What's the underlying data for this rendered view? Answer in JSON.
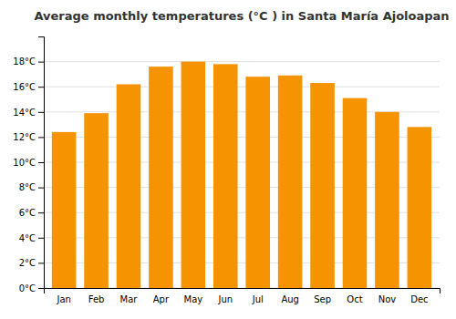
{
  "chart_data": {
    "type": "bar",
    "title": "Average monthly temperatures (°C ) in Santa María Ajoloapan",
    "categories": [
      "Jan",
      "Feb",
      "Mar",
      "Apr",
      "May",
      "Jun",
      "Jul",
      "Aug",
      "Sep",
      "Oct",
      "Nov",
      "Dec"
    ],
    "values": [
      12.4,
      13.9,
      16.2,
      17.6,
      18.0,
      17.8,
      16.8,
      16.9,
      16.3,
      15.1,
      14.0,
      12.8
    ],
    "color": "#F59300",
    "ylim": [
      0,
      20
    ],
    "yticks": [
      {
        "value": 0,
        "label": "0°C"
      },
      {
        "value": 2,
        "label": "2°C"
      },
      {
        "value": 4,
        "label": "4°C"
      },
      {
        "value": 6,
        "label": "6°C"
      },
      {
        "value": 8,
        "label": "8°C"
      },
      {
        "value": 10,
        "label": "10°C"
      },
      {
        "value": 12,
        "label": "12°C"
      },
      {
        "value": 14,
        "label": "14°C"
      },
      {
        "value": 16,
        "label": "16°C"
      },
      {
        "value": 18,
        "label": "18°C"
      }
    ],
    "grid": true
  }
}
